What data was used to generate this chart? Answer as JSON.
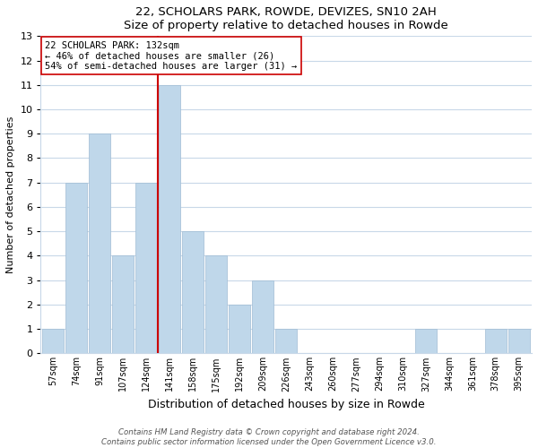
{
  "title1": "22, SCHOLARS PARK, ROWDE, DEVIZES, SN10 2AH",
  "title2": "Size of property relative to detached houses in Rowde",
  "xlabel": "Distribution of detached houses by size in Rowde",
  "ylabel": "Number of detached properties",
  "bar_labels": [
    "57sqm",
    "74sqm",
    "91sqm",
    "107sqm",
    "124sqm",
    "141sqm",
    "158sqm",
    "175sqm",
    "192sqm",
    "209sqm",
    "226sqm",
    "243sqm",
    "260sqm",
    "277sqm",
    "294sqm",
    "310sqm",
    "327sqm",
    "344sqm",
    "361sqm",
    "378sqm",
    "395sqm"
  ],
  "bar_values": [
    1,
    7,
    9,
    4,
    7,
    11,
    5,
    4,
    2,
    3,
    1,
    0,
    0,
    0,
    0,
    0,
    1,
    0,
    0,
    1,
    1
  ],
  "bar_color": "#bfd7ea",
  "bar_edge_color": "#a0bcd4",
  "vline_x_index": 4.5,
  "vline_color": "#cc0000",
  "ylim": [
    0,
    13
  ],
  "yticks": [
    0,
    1,
    2,
    3,
    4,
    5,
    6,
    7,
    8,
    9,
    10,
    11,
    12,
    13
  ],
  "annotation_title": "22 SCHOLARS PARK: 132sqm",
  "annotation_line1": "← 46% of detached houses are smaller (26)",
  "annotation_line2": "54% of semi-detached houses are larger (31) →",
  "footer1": "Contains HM Land Registry data © Crown copyright and database right 2024.",
  "footer2": "Contains public sector information licensed under the Open Government Licence v3.0.",
  "bg_color": "#ffffff",
  "grid_color": "#c8d8e8",
  "ann_box_edge": "#cc0000",
  "ann_box_bg": "#ffffff"
}
